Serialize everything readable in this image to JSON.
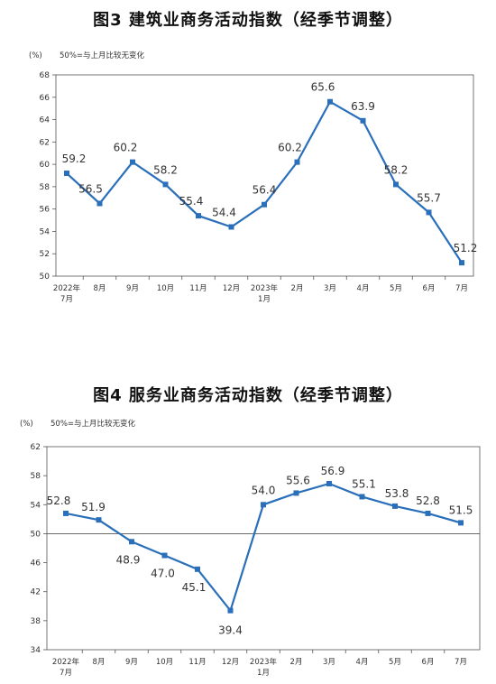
{
  "chart_data": [
    {
      "type": "line",
      "title": "图3  建筑业商务活动指数（经季节调整）",
      "unit_label": "(%)",
      "note": "50%=与上月比较无变化",
      "categories": [
        [
          "2022年",
          "7月"
        ],
        [
          "8月"
        ],
        [
          "9月"
        ],
        [
          "10月"
        ],
        [
          "11月"
        ],
        [
          "12月"
        ],
        [
          "2023年",
          "1月"
        ],
        [
          "2月"
        ],
        [
          "3月"
        ],
        [
          "4月"
        ],
        [
          "5月"
        ],
        [
          "6月"
        ],
        [
          "7月"
        ]
      ],
      "values": [
        59.2,
        56.5,
        60.2,
        58.2,
        55.4,
        54.4,
        56.4,
        60.2,
        65.6,
        63.9,
        58.2,
        55.7,
        51.2
      ],
      "ylim": [
        50,
        68
      ],
      "yticks": [
        50,
        52,
        54,
        56,
        58,
        60,
        62,
        64,
        66,
        68
      ],
      "color": "#2a6fba",
      "grid": false
    },
    {
      "type": "line",
      "title": "图4  服务业商务活动指数（经季节调整）",
      "unit_label": "(%)",
      "note": "50%=与上月比较无变化",
      "categories": [
        [
          "2022年",
          "7月"
        ],
        [
          "8月"
        ],
        [
          "9月"
        ],
        [
          "10月"
        ],
        [
          "11月"
        ],
        [
          "12月"
        ],
        [
          "2023年",
          "1月"
        ],
        [
          "2月"
        ],
        [
          "3月"
        ],
        [
          "4月"
        ],
        [
          "5月"
        ],
        [
          "6月"
        ],
        [
          "7月"
        ]
      ],
      "values": [
        52.8,
        51.9,
        48.9,
        47.0,
        45.1,
        39.4,
        54.0,
        55.6,
        56.9,
        55.1,
        53.8,
        52.8,
        51.5
      ],
      "ylim": [
        34,
        62
      ],
      "yticks": [
        34,
        38,
        42,
        46,
        50,
        54,
        58,
        62
      ],
      "color": "#2a6fba",
      "grid": false
    }
  ]
}
